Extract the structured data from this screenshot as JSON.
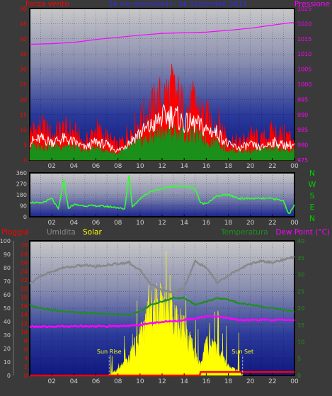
{
  "colors": {
    "page_bg": "#3a3a3a",
    "wind": "#ff0000",
    "wind_gust": "#ffffff",
    "wind_avg": "#1a8f1a",
    "pressure": "#ff00ff",
    "direction": "#33ff33",
    "rain": "#ff0000",
    "humidity": "#888888",
    "solar": "#ffff00",
    "temperature": "#1f8f1f",
    "dew_point": "#ff00ff",
    "date_title": "#2a2aff",
    "nwsen": "#00cc00",
    "tick_text": "#cccccc"
  },
  "chart_data": [
    {
      "type": "line",
      "title": "24 ore precedenti - 24 Settembre 2013",
      "left_label": "Forza vento",
      "right_label": "Pressione",
      "x": [
        "02",
        "04",
        "06",
        "08",
        "10",
        "12",
        "14",
        "16",
        "18",
        "20",
        "22",
        "00"
      ],
      "y_left_ticks": [
        0,
        5,
        10,
        15,
        20,
        25,
        30,
        35,
        40,
        45,
        50
      ],
      "y_left_range": [
        0,
        50
      ],
      "y_right_ticks": [
        975,
        980,
        985,
        990,
        995,
        1000,
        1005,
        1010,
        1015,
        1020,
        1025
      ],
      "y_right_range": [
        975,
        1025
      ],
      "grid": true,
      "series": [
        {
          "name": "Forza vento",
          "axis": "left",
          "style": "filled-bars",
          "values": [
            [
              0,
              10
            ],
            [
              1,
              12
            ],
            [
              2,
              9
            ],
            [
              3,
              11
            ],
            [
              4,
              10
            ],
            [
              5,
              6
            ],
            [
              6,
              11
            ],
            [
              7,
              8
            ],
            [
              8,
              5
            ],
            [
              9,
              10
            ],
            [
              10,
              14
            ],
            [
              11,
              18
            ],
            [
              12,
              22
            ],
            [
              13,
              25
            ],
            [
              14,
              18
            ],
            [
              15,
              20
            ],
            [
              16,
              15
            ],
            [
              17,
              14
            ],
            [
              18,
              8
            ],
            [
              19,
              6
            ],
            [
              20,
              9
            ],
            [
              21,
              7
            ],
            [
              22,
              10
            ],
            [
              23,
              9
            ],
            [
              24,
              8
            ]
          ]
        },
        {
          "name": "Raffica",
          "axis": "left",
          "style": "line",
          "values": [
            [
              0,
              6
            ],
            [
              1,
              7
            ],
            [
              2,
              6
            ],
            [
              3,
              7
            ],
            [
              4,
              6
            ],
            [
              5,
              4
            ],
            [
              6,
              6
            ],
            [
              7,
              5
            ],
            [
              8,
              3
            ],
            [
              9,
              6
            ],
            [
              10,
              9
            ],
            [
              11,
              11
            ],
            [
              12,
              14
            ],
            [
              13,
              15
            ],
            [
              14,
              12
            ],
            [
              15,
              12
            ],
            [
              16,
              10
            ],
            [
              17,
              9
            ],
            [
              18,
              5
            ],
            [
              19,
              4
            ],
            [
              20,
              5
            ],
            [
              21,
              4
            ],
            [
              22,
              6
            ],
            [
              23,
              5
            ],
            [
              24,
              5
            ]
          ]
        },
        {
          "name": "Media",
          "axis": "left",
          "style": "line",
          "values": [
            [
              0,
              4
            ],
            [
              1,
              5
            ],
            [
              2,
              4
            ],
            [
              3,
              5
            ],
            [
              4,
              4
            ],
            [
              5,
              3
            ],
            [
              6,
              4
            ],
            [
              7,
              3
            ],
            [
              8,
              2
            ],
            [
              9,
              4
            ],
            [
              10,
              6
            ],
            [
              11,
              7
            ],
            [
              12,
              9
            ],
            [
              13,
              9
            ],
            [
              14,
              8
            ],
            [
              15,
              8
            ],
            [
              16,
              6
            ],
            [
              17,
              6
            ],
            [
              18,
              3
            ],
            [
              19,
              3
            ],
            [
              20,
              3
            ],
            [
              21,
              3
            ],
            [
              22,
              4
            ],
            [
              23,
              3
            ],
            [
              24,
              3
            ]
          ]
        },
        {
          "name": "Pressione",
          "axis": "right",
          "style": "line",
          "values": [
            [
              0,
              1013.2
            ],
            [
              2,
              1013.4
            ],
            [
              4,
              1013.8
            ],
            [
              6,
              1014.8
            ],
            [
              8,
              1015.5
            ],
            [
              10,
              1016.2
            ],
            [
              12,
              1016.8
            ],
            [
              14,
              1017.0
            ],
            [
              16,
              1017.2
            ],
            [
              18,
              1017.8
            ],
            [
              20,
              1018.5
            ],
            [
              22,
              1019.5
            ],
            [
              24,
              1020.5
            ]
          ]
        }
      ]
    },
    {
      "type": "scatter",
      "title": "",
      "right_label": "NWSEN",
      "x": [
        "02",
        "04",
        "06",
        "08",
        "10",
        "12",
        "14",
        "16",
        "18",
        "20",
        "22",
        "00"
      ],
      "y_left_ticks": [
        0,
        90,
        180,
        270,
        360
      ],
      "y_range": [
        0,
        360
      ],
      "grid": true,
      "series": [
        {
          "name": "Direzione",
          "values": [
            [
              0,
              120
            ],
            [
              1,
              110
            ],
            [
              2,
              150
            ],
            [
              2.6,
              60
            ],
            [
              3.1,
              300
            ],
            [
              3.5,
              70
            ],
            [
              4,
              100
            ],
            [
              5,
              90
            ],
            [
              6,
              90
            ],
            [
              7,
              85
            ],
            [
              8,
              75
            ],
            [
              8.6,
              60
            ],
            [
              9,
              340
            ],
            [
              9.3,
              80
            ],
            [
              10,
              150
            ],
            [
              11,
              210
            ],
            [
              12,
              230
            ],
            [
              13,
              250
            ],
            [
              14,
              250
            ],
            [
              15,
              230
            ],
            [
              15.5,
              110
            ],
            [
              16,
              110
            ],
            [
              17,
              170
            ],
            [
              18,
              180
            ],
            [
              19,
              150
            ],
            [
              20,
              150
            ],
            [
              21,
              150
            ],
            [
              22,
              150
            ],
            [
              23,
              130
            ],
            [
              23.5,
              20
            ],
            [
              24,
              100
            ]
          ]
        }
      ]
    },
    {
      "type": "line",
      "title": "",
      "labels": [
        "Pioggia",
        "Umidita",
        "Solar",
        "Temperatura",
        "Dew Point (°C)"
      ],
      "x": [
        "02",
        "04",
        "06",
        "08",
        "10",
        "12",
        "14",
        "16",
        "18",
        "20",
        "22",
        "00"
      ],
      "y_humidity_ticks": [
        0,
        10,
        20,
        30,
        40,
        50,
        60,
        70,
        80,
        90,
        100
      ],
      "y_rain_ticks": [
        0,
        2,
        4,
        6,
        8,
        10,
        12,
        14,
        16,
        18,
        20,
        22,
        24,
        26,
        28,
        30
      ],
      "y_temp_ticks": [
        0,
        5,
        10,
        15,
        20,
        25,
        30,
        35,
        40
      ],
      "annotations": [
        "Sun Rise",
        "Sun Set"
      ],
      "sun_rise_hour": 7.2,
      "sun_set_hour": 19.3,
      "grid": true,
      "series": [
        {
          "name": "Umidita",
          "axis": "humidity",
          "values": [
            [
              0,
              68
            ],
            [
              1,
              74
            ],
            [
              2,
              77
            ],
            [
              3,
              80
            ],
            [
              4,
              81
            ],
            [
              5,
              82
            ],
            [
              6,
              81
            ],
            [
              7,
              82
            ],
            [
              8,
              83
            ],
            [
              9,
              84
            ],
            [
              10,
              78
            ],
            [
              11,
              68
            ],
            [
              12,
              63
            ],
            [
              13,
              62
            ],
            [
              14,
              65
            ],
            [
              15,
              85
            ],
            [
              16,
              80
            ],
            [
              17,
              69
            ],
            [
              18,
              74
            ],
            [
              19,
              79
            ],
            [
              20,
              83
            ],
            [
              21,
              85
            ],
            [
              22,
              84
            ],
            [
              23,
              86
            ],
            [
              24,
              88
            ]
          ]
        },
        {
          "name": "Temperatura",
          "axis": "temp",
          "values": [
            [
              0,
              21
            ],
            [
              1,
              20
            ],
            [
              2,
              19.5
            ],
            [
              3,
              19
            ],
            [
              4,
              18.8
            ],
            [
              5,
              18.5
            ],
            [
              6,
              18.5
            ],
            [
              7,
              18.3
            ],
            [
              8,
              18.2
            ],
            [
              9,
              18
            ],
            [
              10,
              19
            ],
            [
              11,
              21
            ],
            [
              12,
              22
            ],
            [
              13,
              23
            ],
            [
              14,
              23
            ],
            [
              15,
              21
            ],
            [
              16,
              22
            ],
            [
              17,
              23
            ],
            [
              18,
              22.5
            ],
            [
              19,
              21.5
            ],
            [
              20,
              21
            ],
            [
              21,
              20.5
            ],
            [
              22,
              20
            ],
            [
              23,
              19.5
            ],
            [
              24,
              19
            ]
          ]
        },
        {
          "name": "Dew Point",
          "axis": "temp",
          "values": [
            [
              0,
              14.5
            ],
            [
              1,
              14.5
            ],
            [
              2,
              14.5
            ],
            [
              3,
              14.6
            ],
            [
              4,
              14.6
            ],
            [
              5,
              14.7
            ],
            [
              6,
              14.6
            ],
            [
              7,
              14.6
            ],
            [
              8,
              14.7
            ],
            [
              9,
              14.8
            ],
            [
              10,
              15
            ],
            [
              11,
              15.5
            ],
            [
              12,
              16
            ],
            [
              13,
              16
            ],
            [
              14,
              16.5
            ],
            [
              15,
              17
            ],
            [
              16,
              17.5
            ],
            [
              17,
              17.5
            ],
            [
              18,
              17
            ],
            [
              19,
              16.5
            ],
            [
              20,
              16.5
            ],
            [
              21,
              16.5
            ],
            [
              22,
              16.5
            ],
            [
              23,
              16.5
            ],
            [
              24,
              16.5
            ]
          ]
        },
        {
          "name": "Solar",
          "axis": "temp",
          "style": "filled",
          "values": [
            [
              7.2,
              0
            ],
            [
              8,
              2
            ],
            [
              9,
              5
            ],
            [
              10,
              13
            ],
            [
              11,
              20
            ],
            [
              12,
              24
            ],
            [
              13,
              20
            ],
            [
              14,
              15
            ],
            [
              15,
              6
            ],
            [
              15.5,
              3
            ],
            [
              16,
              10
            ],
            [
              17,
              8
            ],
            [
              18,
              3
            ],
            [
              19,
              1
            ],
            [
              19.3,
              0
            ]
          ]
        },
        {
          "name": "Pioggia",
          "axis": "rain",
          "values": [
            [
              0,
              0
            ],
            [
              15.4,
              0
            ],
            [
              15.5,
              0.8
            ],
            [
              24,
              0.8
            ]
          ]
        }
      ]
    }
  ]
}
